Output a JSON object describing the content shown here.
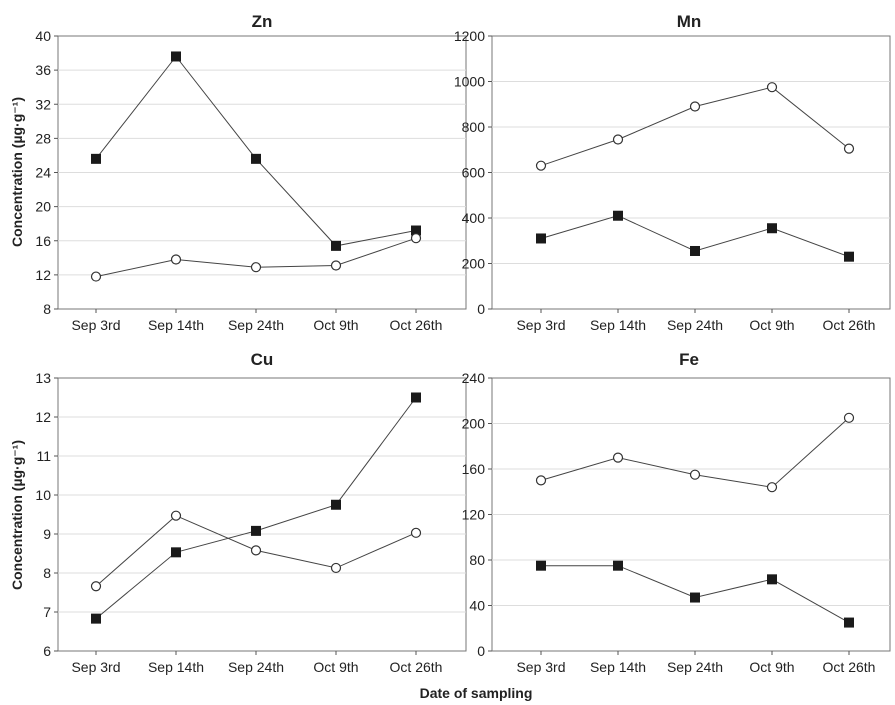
{
  "figure": {
    "xlabel": "Date of sampling",
    "ylabel": "Concentration (µg·g⁻¹)"
  },
  "chart_data": [
    {
      "type": "line",
      "title": "Zn",
      "categories": [
        "Sep 3rd",
        "Sep 14th",
        "Sep 24th",
        "Oct 9th",
        "Oct 26th"
      ],
      "ylim": [
        8,
        40
      ],
      "yticks": [
        8,
        12,
        16,
        20,
        24,
        28,
        32,
        36,
        40
      ],
      "grid": true,
      "series": [
        {
          "marker": "filled-square",
          "values": [
            25.6,
            37.6,
            25.6,
            15.4,
            17.2
          ]
        },
        {
          "marker": "open-circle",
          "values": [
            11.8,
            13.8,
            12.9,
            13.1,
            16.3
          ]
        }
      ]
    },
    {
      "type": "line",
      "title": "Mn",
      "categories": [
        "Sep 3rd",
        "Sep 14th",
        "Sep 24th",
        "Oct 9th",
        "Oct 26th"
      ],
      "ylim": [
        0,
        1200
      ],
      "yticks": [
        0,
        200,
        400,
        600,
        800,
        1000,
        1200
      ],
      "grid": true,
      "series": [
        {
          "marker": "filled-square",
          "values": [
            310,
            410,
            255,
            355,
            230
          ]
        },
        {
          "marker": "open-circle",
          "values": [
            630,
            745,
            890,
            975,
            705
          ]
        }
      ]
    },
    {
      "type": "line",
      "title": "Cu",
      "categories": [
        "Sep 3rd",
        "Sep 14th",
        "Sep 24th",
        "Oct 9th",
        "Oct 26th"
      ],
      "ylim": [
        6,
        13
      ],
      "yticks": [
        6,
        7,
        8,
        9,
        10,
        11,
        12,
        13
      ],
      "grid": true,
      "series": [
        {
          "marker": "filled-square",
          "values": [
            6.83,
            8.53,
            9.08,
            9.75,
            12.5
          ]
        },
        {
          "marker": "open-circle",
          "values": [
            7.66,
            9.47,
            8.58,
            8.13,
            9.03
          ]
        }
      ]
    },
    {
      "type": "line",
      "title": "Fe",
      "categories": [
        "Sep 3rd",
        "Sep 14th",
        "Sep 24th",
        "Oct 9th",
        "Oct 26th"
      ],
      "ylim": [
        0,
        240
      ],
      "yticks": [
        0,
        40,
        80,
        120,
        160,
        200,
        240
      ],
      "grid": true,
      "series": [
        {
          "marker": "filled-square",
          "values": [
            75,
            75,
            47,
            63,
            25
          ]
        },
        {
          "marker": "open-circle",
          "values": [
            150,
            170,
            155,
            144,
            205
          ]
        }
      ]
    }
  ]
}
